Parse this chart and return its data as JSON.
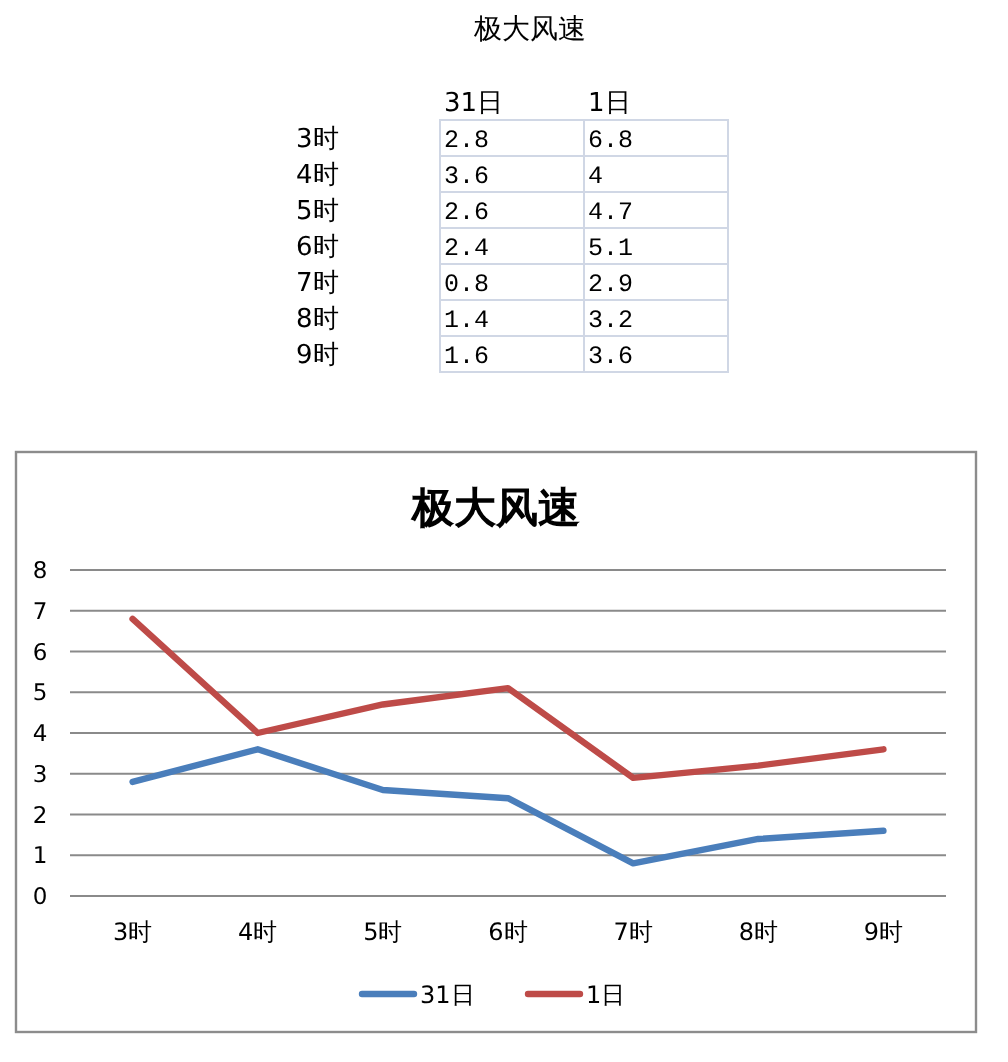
{
  "chart_data": [
    {
      "type": "heatmap",
      "title": "极大风速",
      "categories": [
        "31日",
        "1日"
      ],
      "y_categories": [
        "3时",
        "4时",
        "5时",
        "6时",
        "7时",
        "8时",
        "9时"
      ],
      "cells": [
        [
          2.8,
          6.8
        ],
        [
          3.6,
          4
        ],
        [
          2.6,
          4.7
        ],
        [
          2.4,
          5.1
        ],
        [
          0.8,
          2.9
        ],
        [
          1.4,
          3.2
        ],
        [
          1.6,
          3.6
        ]
      ],
      "color": "#ffffff",
      "data_labels": true
    },
    {
      "type": "line",
      "title": "极大风速",
      "categories": [
        "3时",
        "4时",
        "5时",
        "6时",
        "7时",
        "8时",
        "9时"
      ],
      "series": [
        {
          "name": "31日",
          "color": "#4a7ebb",
          "values": [
            2.8,
            3.6,
            2.6,
            2.4,
            0.8,
            1.4,
            1.6
          ]
        },
        {
          "name": "1日",
          "color": "#be4b48",
          "values": [
            6.8,
            4,
            4.7,
            5.1,
            2.9,
            3.2,
            3.6
          ]
        }
      ],
      "ylim": [
        0,
        8
      ],
      "yticks": [
        0,
        1,
        2,
        3,
        4,
        5,
        6,
        7,
        8
      ],
      "grid": "y",
      "legend": "bottom"
    }
  ]
}
